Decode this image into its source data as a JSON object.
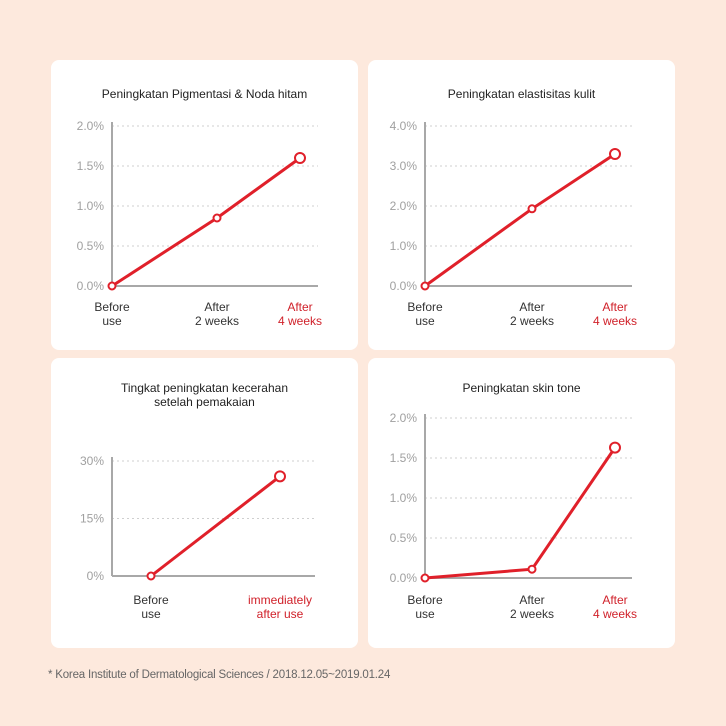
{
  "colors": {
    "line": "#e0202a",
    "axis": "#a8a8a8",
    "grid": "#cfcfcf",
    "tick_text": "#a0a0a0",
    "label": "#333333",
    "highlight": "#d0212a"
  },
  "chart_data": [
    {
      "type": "line",
      "title": [
        "Peningkatan Pigmentasi & Noda hitam"
      ],
      "categories": [
        [
          "Before",
          "use"
        ],
        [
          "After",
          "2 weeks"
        ],
        [
          "After",
          "4 weeks"
        ]
      ],
      "highlight_last": true,
      "values": [
        0.0,
        0.85,
        1.6
      ],
      "ylim": [
        0,
        2.0
      ],
      "yticks": [
        0,
        0.5,
        1.0,
        1.5,
        2.0
      ],
      "ytick_labels": [
        "0.0%",
        "0.5%",
        "1.0%",
        "1.5%",
        "2.0%"
      ],
      "grid": true
    },
    {
      "type": "line",
      "title": [
        "Peningkatan elastisitas kulit"
      ],
      "categories": [
        [
          "Before",
          "use"
        ],
        [
          "After",
          "2 weeks"
        ],
        [
          "After",
          "4 weeks"
        ]
      ],
      "highlight_last": true,
      "values": [
        0.0,
        1.93,
        3.3
      ],
      "ylim": [
        0,
        4.0
      ],
      "yticks": [
        0,
        1,
        2,
        3,
        4
      ],
      "ytick_labels": [
        "0.0%",
        "1.0%",
        "2.0%",
        "3.0%",
        "4.0%"
      ],
      "grid": true
    },
    {
      "type": "line",
      "title": [
        "Tingkat peningkatan kecerahan",
        "setelah pemakaian"
      ],
      "categories": [
        [
          "Before",
          "use"
        ],
        [
          "immediately",
          "after use"
        ]
      ],
      "highlight_last": true,
      "values": [
        0,
        26
      ],
      "ylim": [
        0,
        30
      ],
      "yticks": [
        0,
        15,
        30
      ],
      "ytick_labels": [
        "0%",
        "15%",
        "30%"
      ],
      "grid": true
    },
    {
      "type": "line",
      "title": [
        "Peningkatan skin tone"
      ],
      "categories": [
        [
          "Before",
          "use"
        ],
        [
          "After",
          "2 weeks"
        ],
        [
          "After",
          "4 weeks"
        ]
      ],
      "highlight_last": true,
      "values": [
        0.0,
        0.11,
        1.63
      ],
      "ylim": [
        0,
        2.0
      ],
      "yticks": [
        0,
        0.5,
        1.0,
        1.5,
        2.0
      ],
      "ytick_labels": [
        "0.0%",
        "0.5%",
        "1.0%",
        "1.5%",
        "2.0%"
      ],
      "grid": true
    }
  ],
  "footnote": "* Korea Institute of Dermatological Sciences / 2018.12.05~2019.01.24"
}
